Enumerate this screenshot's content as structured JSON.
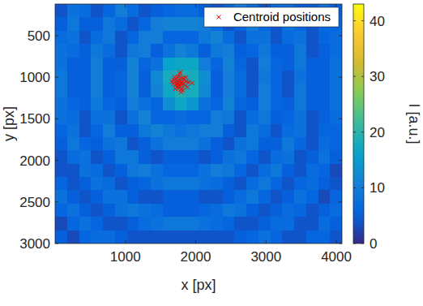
{
  "chart_data": {
    "type": "heatmap",
    "x_label": "x [px]",
    "y_label": "y [px]",
    "colorbar_label": "I [a.u.]",
    "xlim": [
      0,
      4080
    ],
    "ylim": [
      120,
      3000
    ],
    "xticks": [
      1000,
      2000,
      3000,
      4000
    ],
    "yticks": [
      500,
      1000,
      1500,
      2000,
      2500,
      3000
    ],
    "colorbar_lim": [
      0,
      43
    ],
    "colorbar_ticks": [
      0,
      10,
      20,
      30,
      40
    ],
    "legend": "upper right",
    "z": [
      [
        4,
        8,
        7,
        4,
        6,
        10,
        7,
        4,
        5,
        6,
        7,
        7,
        5,
        4,
        6,
        10,
        7,
        4,
        7,
        8,
        5,
        5,
        8,
        5
      ],
      [
        5,
        9,
        5,
        5,
        9,
        7,
        4,
        6,
        10,
        11,
        11,
        11,
        10,
        7,
        4,
        6,
        10,
        6,
        4,
        8,
        6,
        4,
        7,
        6
      ],
      [
        7,
        8,
        4,
        7,
        9,
        4,
        6,
        10,
        10,
        6,
        6,
        6,
        9,
        11,
        7,
        4,
        8,
        8,
        4,
        7,
        8,
        4,
        6,
        7
      ],
      [
        8,
        7,
        5,
        9,
        7,
        4,
        9,
        10,
        5,
        8,
        11,
        9,
        5,
        9,
        10,
        5,
        6,
        9,
        5,
        5,
        9,
        4,
        5,
        7
      ],
      [
        8,
        5,
        5,
        10,
        5,
        5,
        11,
        6,
        8,
        16,
        17,
        17,
        10,
        6,
        11,
        6,
        4,
        10,
        6,
        5,
        9,
        5,
        5,
        8
      ],
      [
        9,
        5,
        5,
        10,
        5,
        6,
        11,
        5,
        12,
        18,
        19,
        18,
        13,
        5,
        10,
        7,
        4,
        9,
        6,
        4,
        8,
        5,
        5,
        8
      ],
      [
        9,
        5,
        5,
        10,
        5,
        6,
        11,
        5,
        11,
        17,
        19,
        18,
        12,
        5,
        10,
        7,
        4,
        10,
        6,
        4,
        9,
        5,
        5,
        8
      ],
      [
        8,
        6,
        5,
        9,
        6,
        5,
        10,
        8,
        6,
        13,
        17,
        14,
        8,
        6,
        11,
        6,
        5,
        10,
        6,
        5,
        9,
        5,
        5,
        8
      ],
      [
        8,
        7,
        4,
        8,
        8,
        4,
        8,
        11,
        6,
        6,
        7,
        6,
        6,
        10,
        9,
        4,
        7,
        9,
        5,
        6,
        8,
        4,
        5,
        7
      ],
      [
        6,
        8,
        4,
        6,
        10,
        5,
        5,
        9,
        11,
        9,
        8,
        9,
        10,
        10,
        5,
        4,
        9,
        7,
        4,
        7,
        8,
        4,
        6,
        6
      ],
      [
        5,
        9,
        6,
        5,
        8,
        9,
        4,
        5,
        8,
        10,
        10,
        10,
        8,
        5,
        4,
        8,
        9,
        5,
        5,
        9,
        6,
        4,
        7,
        6
      ],
      [
        4,
        7,
        8,
        4,
        5,
        9,
        9,
        5,
        4,
        5,
        5,
        5,
        4,
        5,
        8,
        9,
        6,
        4,
        7,
        8,
        4,
        5,
        8,
        5
      ],
      [
        4,
        4,
        8,
        7,
        4,
        5,
        9,
        10,
        8,
        6,
        6,
        6,
        8,
        10,
        9,
        6,
        4,
        7,
        9,
        5,
        4,
        7,
        6,
        3
      ],
      [
        6,
        4,
        5,
        8,
        7,
        4,
        5,
        6,
        8,
        9,
        9,
        9,
        8,
        7,
        5,
        4,
        7,
        9,
        6,
        4,
        6,
        7,
        5,
        4
      ],
      [
        8,
        5,
        4,
        5,
        8,
        8,
        5,
        4,
        4,
        5,
        5,
        5,
        4,
        4,
        5,
        7,
        9,
        6,
        4,
        5,
        8,
        6,
        3,
        6
      ],
      [
        6,
        8,
        5,
        4,
        5,
        8,
        9,
        8,
        7,
        5,
        5,
        5,
        6,
        7,
        9,
        8,
        5,
        4,
        5,
        7,
        6,
        4,
        5,
        7
      ],
      [
        3,
        6,
        8,
        6,
        4,
        4,
        5,
        7,
        8,
        9,
        9,
        9,
        8,
        7,
        6,
        4,
        4,
        5,
        7,
        7,
        4,
        4,
        7,
        5
      ],
      [
        5,
        3,
        6,
        7,
        7,
        5,
        4,
        4,
        4,
        4,
        4,
        4,
        4,
        4,
        4,
        5,
        6,
        8,
        6,
        4,
        4,
        6,
        6,
        4
      ]
    ],
    "series": [
      {
        "name": "Centroid positions",
        "type": "scatter",
        "marker": "x",
        "color": "#ff0000",
        "x": [
          1780,
          1750,
          1820,
          1700,
          1850,
          1760,
          1730,
          1800,
          1690,
          1870,
          1790,
          1740,
          1810,
          1720,
          1840,
          1770,
          1680,
          1900,
          1760,
          1830,
          1710,
          1790,
          1750,
          1860,
          1800,
          1740,
          1820,
          1660,
          1780,
          1720,
          1880,
          1770,
          1810,
          1700,
          1950,
          1760,
          1790,
          1830,
          1740,
          1780
        ],
        "values": [
          1040,
          1080,
          1010,
          1060,
          1100,
          990,
          1120,
          1070,
          1030,
          1050,
          1150,
          1000,
          1130,
          1090,
          1040,
          960,
          1080,
          1060,
          1110,
          1020,
          1140,
          1180,
          1050,
          1000,
          1090,
          1070,
          1160,
          1050,
          940,
          1020,
          1120,
          1100,
          1060,
          1000,
          1070,
          1130,
          1010,
          1080,
          1040,
          1070
        ]
      }
    ]
  }
}
